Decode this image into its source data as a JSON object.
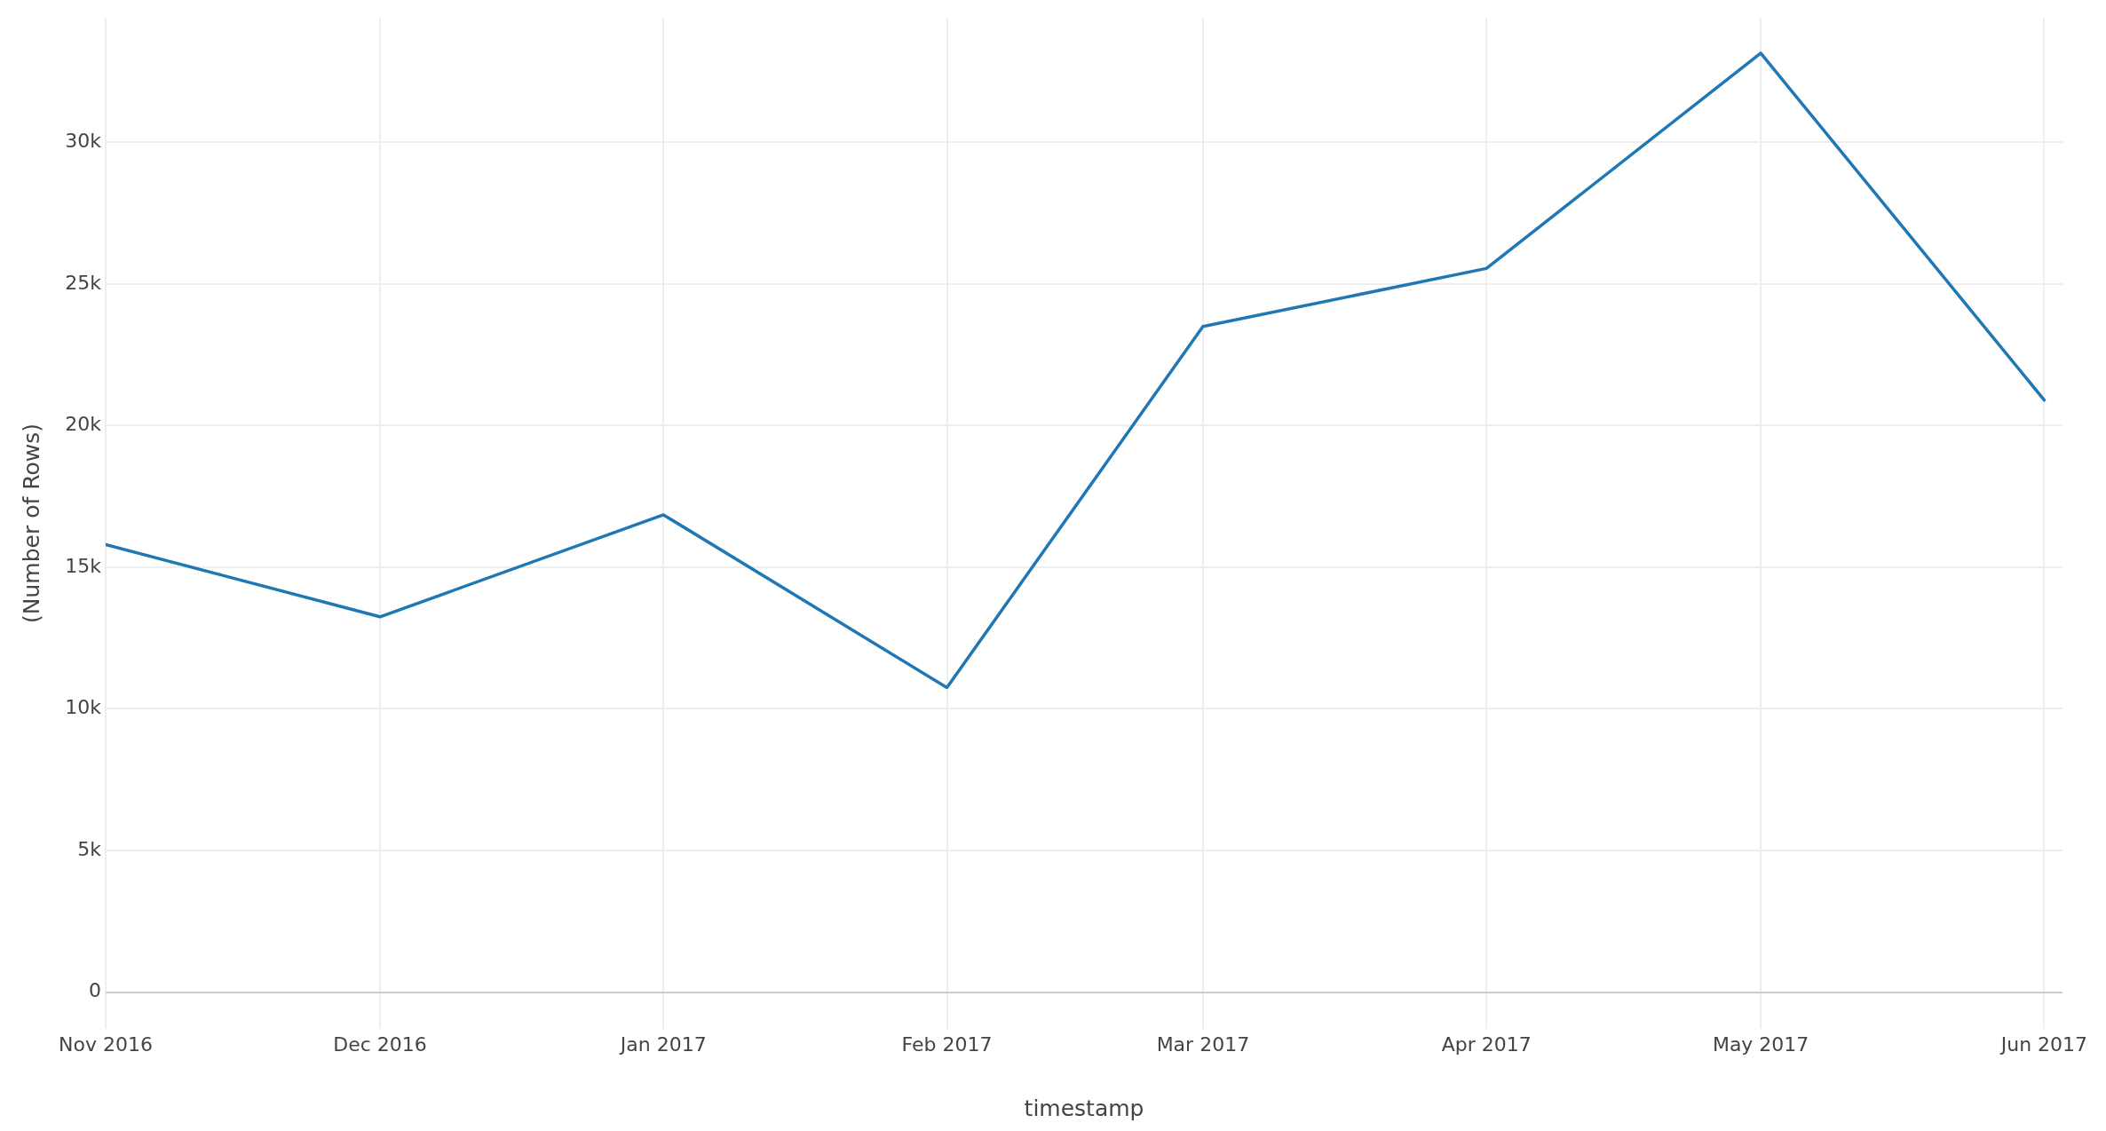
{
  "chart_data": {
    "type": "line",
    "xlabel": "timestamp",
    "ylabel": "(Number of Rows)",
    "x": [
      "2016-11",
      "2016-12",
      "2017-01",
      "2017-02",
      "2017-03",
      "2017-04",
      "2017-05",
      "2017-06"
    ],
    "series": [
      {
        "color": "#1f77b4",
        "values": [
          15800,
          13250,
          16850,
          10750,
          23500,
          25550,
          33150,
          20900
        ]
      }
    ],
    "xlim": [
      "2016-11-01",
      "2017-06-03"
    ],
    "xticks": [
      {
        "value": "2016-11",
        "label": "Nov 2016"
      },
      {
        "value": "2016-12",
        "label": "Dec 2016"
      },
      {
        "value": "2017-01",
        "label": "Jan 2017"
      },
      {
        "value": "2017-02",
        "label": "Feb 2017"
      },
      {
        "value": "2017-03",
        "label": "Mar 2017"
      },
      {
        "value": "2017-04",
        "label": "Apr 2017"
      },
      {
        "value": "2017-05",
        "label": "May 2017"
      },
      {
        "value": "2017-06",
        "label": "Jun 2017"
      }
    ],
    "ylim": [
      -1300,
      34400
    ],
    "yticks": [
      0,
      {
        "value": 5000,
        "label": "5k"
      },
      {
        "value": 10000,
        "label": "10k"
      },
      {
        "value": 15000,
        "label": "15k"
      },
      {
        "value": 20000,
        "label": "20k"
      },
      {
        "value": 25000,
        "label": "25k"
      },
      {
        "value": 30000,
        "label": "30k"
      }
    ],
    "grid": true
  }
}
